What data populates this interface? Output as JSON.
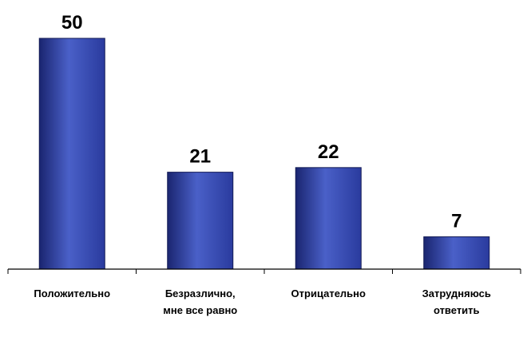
{
  "chart_data": {
    "type": "bar",
    "categories": [
      [
        "Положительно"
      ],
      [
        "Безразлично,",
        "мне все равно"
      ],
      [
        "Отрицательно"
      ],
      [
        "Затрудняюсь",
        "ответить"
      ]
    ],
    "values": [
      50,
      21,
      22,
      7
    ],
    "data_labels": [
      "50",
      "21",
      "22",
      "7"
    ],
    "title": "",
    "xlabel": "",
    "ylabel": "",
    "ylim": [
      0,
      50
    ],
    "grid": false,
    "legend": "none",
    "bar_color": "#2a3b9e",
    "bar_color_light": "#4a60c8",
    "bar_color_dark": "#1a2570"
  }
}
